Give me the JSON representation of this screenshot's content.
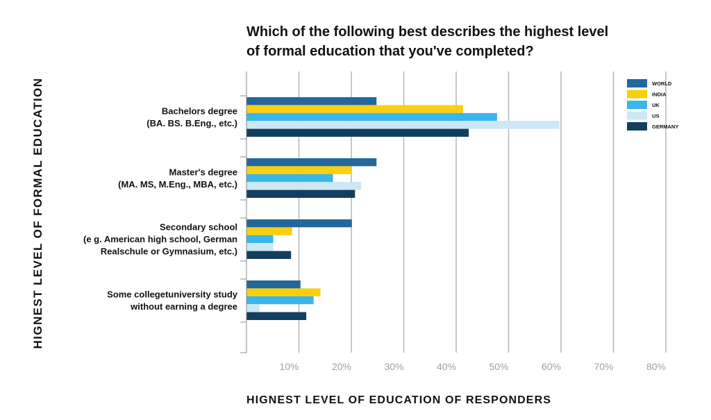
{
  "chart_data": {
    "type": "bar",
    "orientation": "horizontal",
    "title": [
      "Which of the following best describes the highest level",
      "of formal education that you've completed?"
    ],
    "xlabel": "HIGNEST LEVEL OF EDUCATION OF RESPONDERS",
    "ylabel": "HIGNEST LEVEL OF FORMAL EDUCATION",
    "xlim": [
      0,
      80
    ],
    "x_ticks": [
      10,
      20,
      30,
      40,
      50,
      60,
      70,
      80
    ],
    "x_tick_labels": [
      "10%",
      "20%",
      "30%",
      "40%",
      "50%",
      "60%",
      "70%",
      "80%"
    ],
    "grid": true,
    "legend_position": "top-right",
    "categories": [
      [
        "Bachelors degree",
        "(BA. BS. B.Eng., etc.)"
      ],
      [
        "Master's degree",
        "(MA. MS, M.Eng., MBA, etc.)"
      ],
      [
        "Secondary school",
        "(e g. American high school, German",
        "Realschule or Gymnasium, etc.)"
      ],
      [
        "Some collegetuniversity study",
        "without earning a degree"
      ]
    ],
    "series": [
      {
        "name": "WORLD",
        "color": "#23679b",
        "values": [
          24.8,
          24.8,
          20.1,
          10.3
        ]
      },
      {
        "name": "INDIA",
        "color": "#f9cf10",
        "values": [
          41.3,
          20.1,
          8.7,
          14.1
        ]
      },
      {
        "name": "UK",
        "color": "#3bb6ea",
        "values": [
          47.8,
          16.5,
          5.1,
          12.8
        ]
      },
      {
        "name": "US",
        "color": "#cbe8f4",
        "values": [
          59.7,
          21.9,
          5.1,
          2.5
        ]
      },
      {
        "name": "GERMANY",
        "color": "#143e5e",
        "values": [
          42.4,
          20.7,
          8.5,
          11.4
        ]
      }
    ]
  }
}
